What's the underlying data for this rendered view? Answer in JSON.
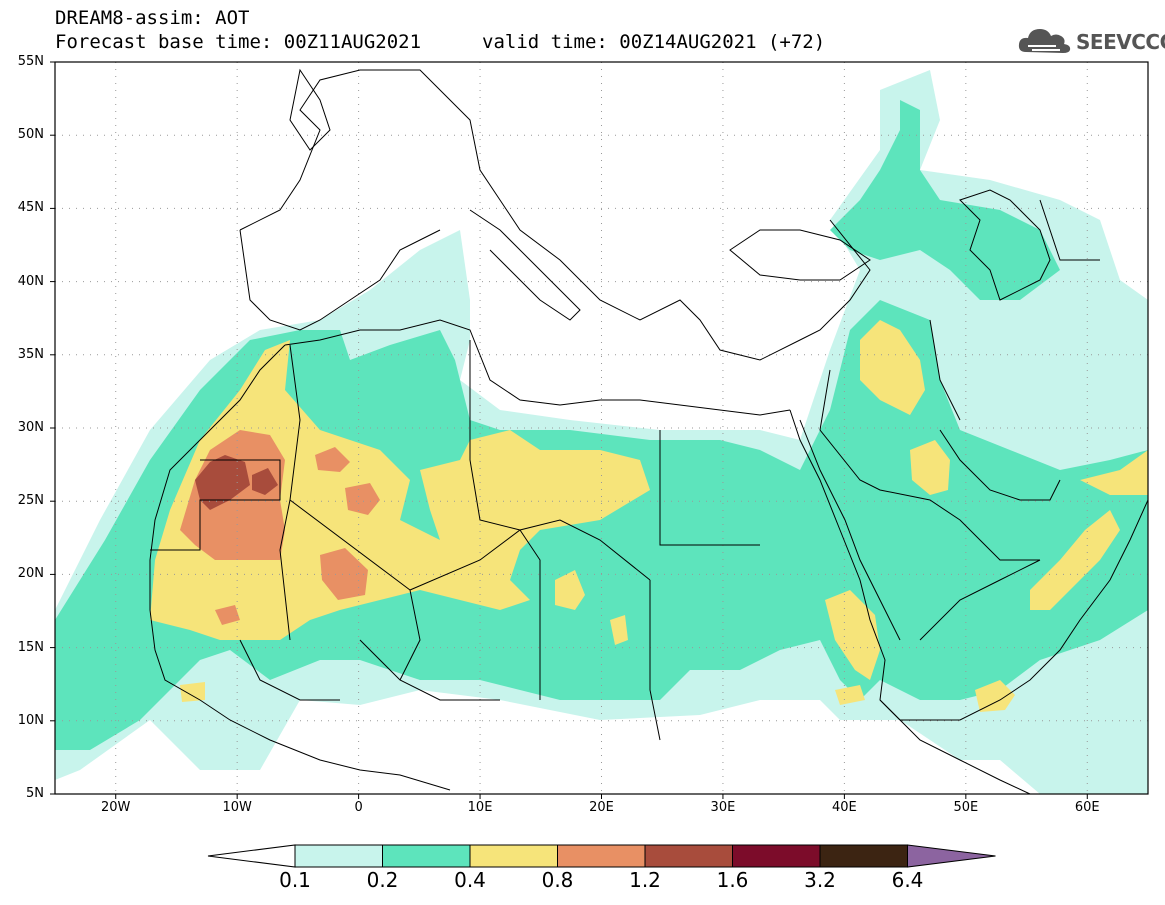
{
  "header": {
    "title": "DREAM8-assim: AOT",
    "forecast": "Forecast base time: 00Z11AUG2021",
    "valid": "valid time: 00Z14AUG2021 (+72)"
  },
  "logo": {
    "text": "SEEVCCC",
    "icon": "cloud-icon"
  },
  "map": {
    "lon_range": [
      -25,
      65
    ],
    "lat_range": [
      5,
      55
    ],
    "lat_labels": [
      "55N",
      "50N",
      "45N",
      "40N",
      "35N",
      "30N",
      "25N",
      "20N",
      "15N",
      "10N",
      "5N"
    ],
    "lon_labels": [
      "20W",
      "10W",
      "0",
      "10E",
      "20E",
      "30E",
      "40E",
      "50E",
      "60E"
    ],
    "grid": true
  },
  "legend": {
    "thresholds": [
      "0.1",
      "0.2",
      "0.4",
      "0.8",
      "1.2",
      "1.6",
      "3.2",
      "6.4"
    ],
    "colors": [
      "#ffffff",
      "#c8f4ec",
      "#5de4bc",
      "#f6e47a",
      "#e89064",
      "#a84c3c",
      "#7c0c2a",
      "#3c2412",
      "#8c64a0"
    ]
  },
  "colors": {
    "c1": "#c8f4ec",
    "c2": "#5de4bc",
    "c3": "#f6e47a",
    "c4": "#e89064",
    "c5": "#a84c3c"
  }
}
